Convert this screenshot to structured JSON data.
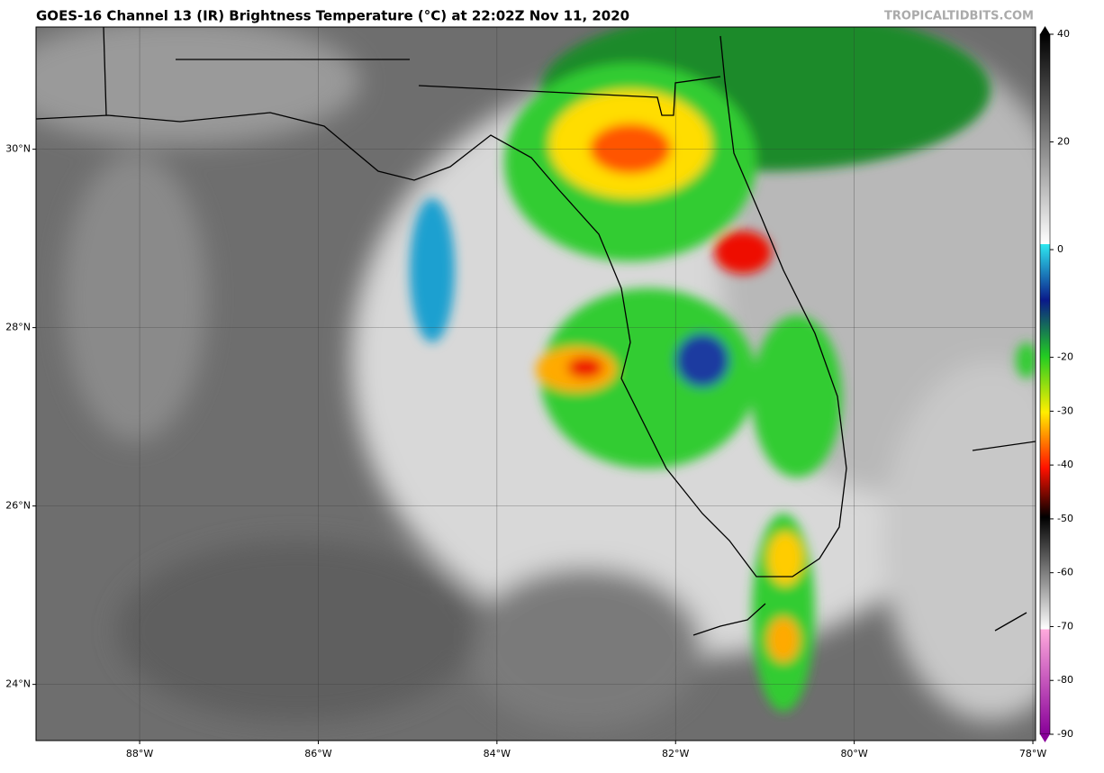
{
  "header": {
    "title": "GOES-16 Channel 13 (IR) Brightness Temperature (°C) at 22:02Z Nov 11, 2020",
    "credit": "TROPICALTIDBITS.COM"
  },
  "map": {
    "xlim": [
      -89.16,
      -77.97
    ],
    "ylim": [
      23.37,
      31.37
    ],
    "xticks": [
      {
        "value": -88,
        "label": "88°W"
      },
      {
        "value": -86,
        "label": "86°W"
      },
      {
        "value": -84,
        "label": "84°W"
      },
      {
        "value": -82,
        "label": "82°W"
      },
      {
        "value": -80,
        "label": "80°W"
      },
      {
        "value": -78,
        "label": "78°W"
      }
    ],
    "yticks": [
      {
        "value": 24,
        "label": "24°N"
      },
      {
        "value": 26,
        "label": "26°N"
      },
      {
        "value": 28,
        "label": "28°N"
      },
      {
        "value": 30,
        "label": "30°N"
      }
    ],
    "grid": true
  },
  "colorbar": {
    "lim": [
      -90,
      40
    ],
    "ticks": [
      40,
      20,
      0,
      -20,
      -30,
      -40,
      -50,
      -60,
      -70,
      -80,
      -90
    ]
  }
}
